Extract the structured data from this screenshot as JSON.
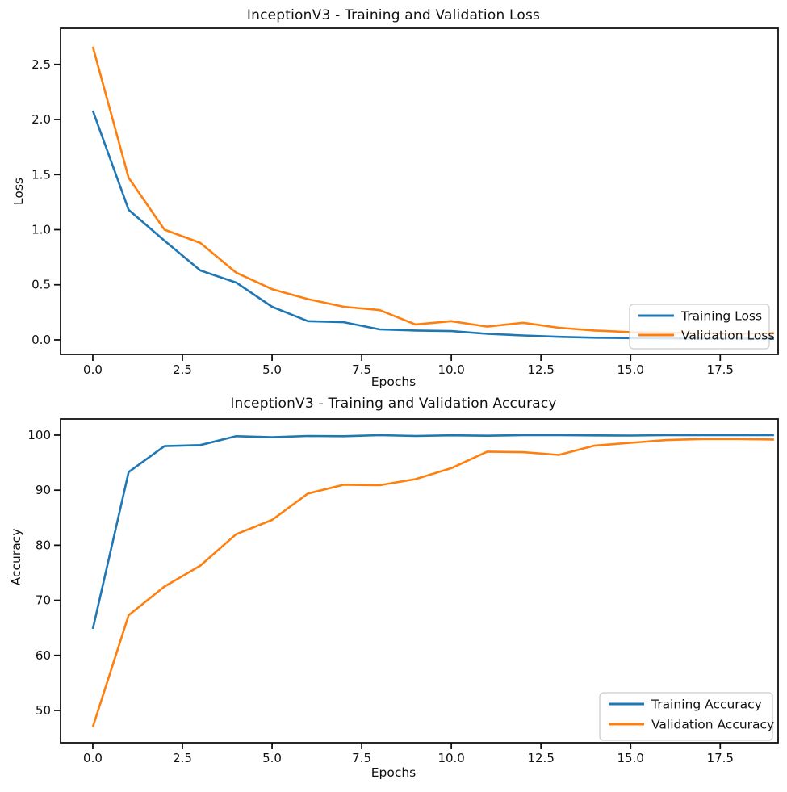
{
  "figure": {
    "background": "#ffffff",
    "text_color": "#111111",
    "accent_blue": "#1f77b4",
    "accent_orange": "#ff7f0e",
    "legend_border_color": "#cccccc"
  },
  "titles": {
    "loss_title": "InceptionV3 - Training and Validation Loss",
    "accuracy_title": "InceptionV3 - Training and Validation Accuracy",
    "loss_xlabel": "Epochs",
    "accuracy_xlabel": "Epochs",
    "loss_ylabel": "Loss",
    "accuracy_ylabel": "Accuracy"
  },
  "chart_data": [
    {
      "type": "line",
      "title": "InceptionV3 - Training and Validation Loss",
      "xlabel": "Epochs",
      "ylabel": "Loss",
      "grid": false,
      "legend_position": "right-center-low",
      "x": [
        0,
        1,
        2,
        3,
        4,
        5,
        6,
        7,
        8,
        9,
        10,
        11,
        12,
        13,
        14,
        15,
        16,
        17,
        18,
        19
      ],
      "series": [
        {
          "name": "Training Loss",
          "color": "#1f77b4",
          "values": [
            2.08,
            1.18,
            0.9,
            0.63,
            0.52,
            0.3,
            0.17,
            0.16,
            0.095,
            0.085,
            0.08,
            0.055,
            0.04,
            0.028,
            0.02,
            0.016,
            0.014,
            0.012,
            0.011,
            0.01
          ]
        },
        {
          "name": "Validation Loss",
          "color": "#ff7f0e",
          "values": [
            2.66,
            1.47,
            1.0,
            0.88,
            0.61,
            0.46,
            0.37,
            0.3,
            0.27,
            0.14,
            0.17,
            0.12,
            0.155,
            0.11,
            0.085,
            0.07,
            0.065,
            0.06,
            0.055,
            0.06
          ]
        }
      ],
      "xlim": [
        -0.9,
        19.115
      ],
      "ylim": [
        -0.132,
        2.828
      ],
      "xticks": [
        0,
        2.5,
        5,
        7.5,
        10,
        12.5,
        15,
        17.5
      ],
      "xtick_labels": [
        "0.0",
        "2.5",
        "5.0",
        "7.5",
        "10.0",
        "12.5",
        "15.0",
        "17.5"
      ],
      "yticks": [
        0,
        0.5,
        1.0,
        1.5,
        2.0,
        2.5
      ],
      "ytick_labels": [
        "0.0",
        "0.5",
        "1.0",
        "1.5",
        "2.0",
        "2.5"
      ]
    },
    {
      "type": "line",
      "title": "InceptionV3 - Training and Validation Accuracy",
      "xlabel": "Epochs",
      "ylabel": "Accuracy",
      "grid": false,
      "legend_position": "lower-right",
      "x": [
        0,
        1,
        2,
        3,
        4,
        5,
        6,
        7,
        8,
        9,
        10,
        11,
        12,
        13,
        14,
        15,
        16,
        17,
        18,
        19
      ],
      "series": [
        {
          "name": "Training Accuracy",
          "color": "#1f77b4",
          "values": [
            64.8,
            93.3,
            98.0,
            98.2,
            99.8,
            99.62,
            99.85,
            99.8,
            100.0,
            99.85,
            99.97,
            99.9,
            100.0,
            100.0,
            99.95,
            99.92,
            100.0,
            100.0,
            100.0,
            100.0
          ]
        },
        {
          "name": "Validation Accuracy",
          "color": "#ff7f0e",
          "values": [
            47.0,
            67.3,
            72.5,
            76.3,
            82.0,
            84.6,
            89.4,
            91.0,
            90.9,
            92.0,
            94.0,
            97.0,
            96.9,
            96.4,
            98.1,
            98.6,
            99.1,
            99.3,
            99.3,
            99.2
          ]
        }
      ],
      "xlim": [
        -0.9,
        19.115
      ],
      "ylim": [
        44.13,
        102.93
      ],
      "xticks": [
        0,
        2.5,
        5,
        7.5,
        10,
        12.5,
        15,
        17.5
      ],
      "xtick_labels": [
        "0.0",
        "2.5",
        "5.0",
        "7.5",
        "10.0",
        "12.5",
        "15.0",
        "17.5"
      ],
      "yticks": [
        50,
        60,
        70,
        80,
        90,
        100
      ],
      "ytick_labels": [
        "50",
        "60",
        "70",
        "80",
        "90",
        "100"
      ]
    }
  ]
}
